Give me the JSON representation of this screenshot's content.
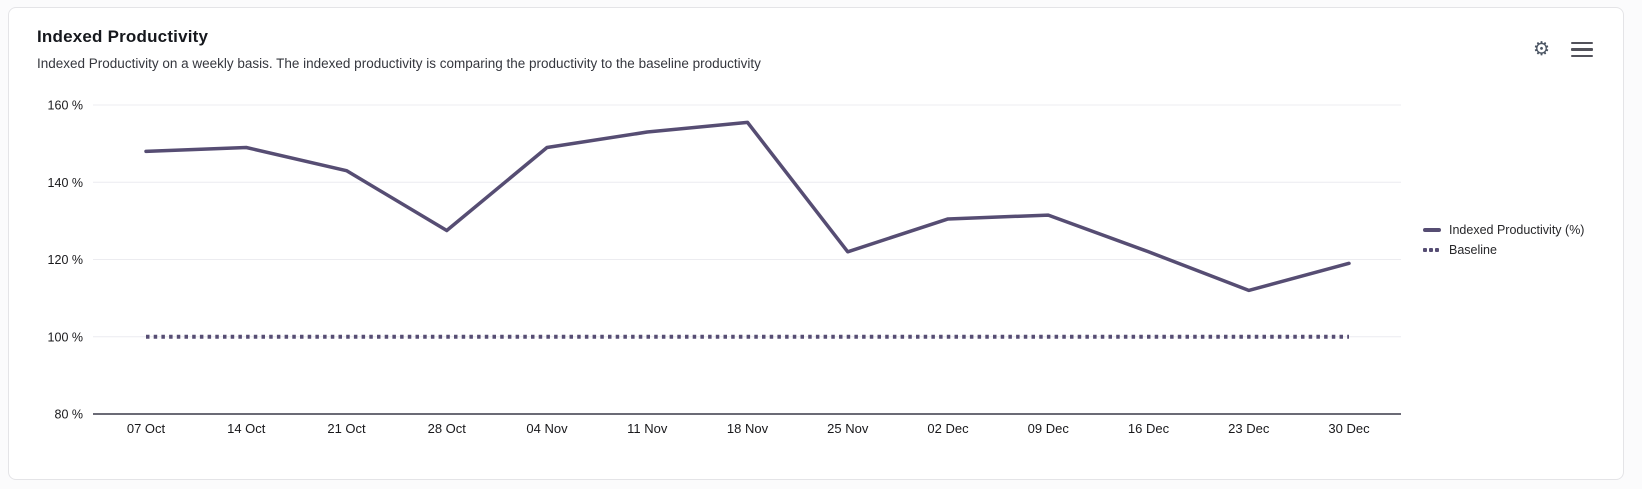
{
  "card": {
    "title": "Indexed Productivity",
    "subtitle": "Indexed Productivity on a weekly basis. The indexed productivity is comparing the productivity to the baseline productivity",
    "icons": {
      "settings": "gear-icon",
      "menu": "hamburger-menu-icon"
    }
  },
  "chart_data": {
    "type": "line",
    "title": "Indexed Productivity",
    "categories": [
      "07 Oct",
      "14 Oct",
      "21 Oct",
      "28 Oct",
      "04 Nov",
      "11 Nov",
      "18 Nov",
      "25 Nov",
      "02 Dec",
      "09 Dec",
      "16 Dec",
      "23 Dec",
      "30 Dec"
    ],
    "series": [
      {
        "name": "Indexed Productivity (%)",
        "style": "solid",
        "color": "#564d73",
        "values": [
          148,
          149,
          143,
          127.5,
          149,
          153,
          155.5,
          122,
          130.5,
          131.5,
          122,
          112,
          119
        ]
      },
      {
        "name": "Baseline",
        "style": "dotted",
        "color": "#564d73",
        "values": [
          100,
          100,
          100,
          100,
          100,
          100,
          100,
          100,
          100,
          100,
          100,
          100,
          100
        ]
      }
    ],
    "ylim": [
      80,
      160
    ],
    "yticks": [
      160,
      140,
      120,
      100,
      80
    ],
    "ytick_suffix": " %",
    "xlabel": "",
    "ylabel": "",
    "grid": "horizontal",
    "legend_position": "right",
    "colors": {
      "grid_line": "#ececf0",
      "axis_line": "#6b6b76",
      "tick_text": "#18181b"
    }
  }
}
